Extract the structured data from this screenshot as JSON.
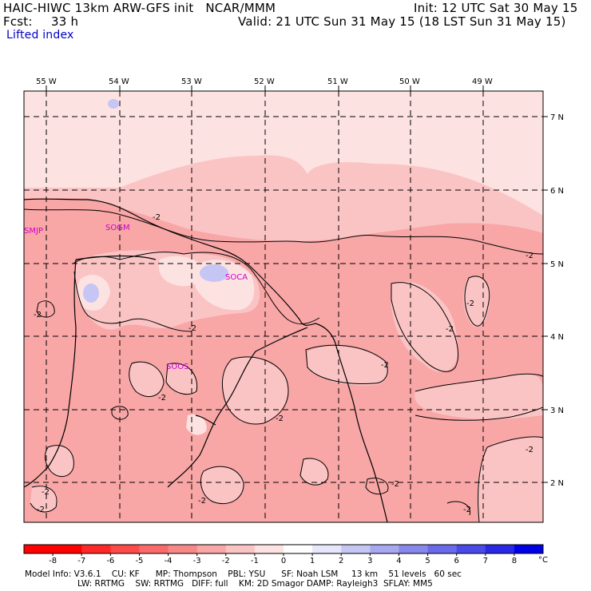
{
  "header": {
    "model_title": "HAIC-HIWC 13km ARW-GFS init   NCAR/MMM",
    "init": "Init: 12 UTC Sat 30 May 15",
    "fcst_label": "Fcst:",
    "fcst_value": "33 h",
    "valid": "Valid: 21 UTC Sun 31 May 15 (18 LST Sun 31 May 15)",
    "field_name": "Lifted index"
  },
  "map": {
    "lon_labels": [
      "55 W",
      "54 W",
      "53 W",
      "52 W",
      "51 W",
      "50 W",
      "49 W"
    ],
    "lat_labels": [
      "7 N",
      "6 N",
      "5 N",
      "4 N",
      "3 N",
      "2 N"
    ],
    "stations": [
      "SMJP",
      "SOGM",
      "SOCA",
      "SOOS"
    ],
    "contour_label": "-2",
    "colors": {
      "frame": "#000000",
      "station_text": "#cc00cc",
      "pale": "#fde2e2",
      "light": "#fbc4c4",
      "medium": "#f8a6a6",
      "blue_spot": "#c6c6f4"
    }
  },
  "colorbar": {
    "unit": "°C",
    "labels": [
      "-8",
      "-7",
      "-6",
      "-5",
      "-4",
      "-3",
      "-2",
      "-1",
      "0",
      "1",
      "2",
      "3",
      "4",
      "5",
      "6",
      "7",
      "8"
    ],
    "colors": [
      "#ff0000",
      "#ff2828",
      "#ff4a4a",
      "#fb6a6a",
      "#f88888",
      "#f8a6a6",
      "#fbc4c4",
      "#fde2e2",
      "#ffffff",
      "#e6e6fc",
      "#c6c6f4",
      "#a8a8f0",
      "#8888ec",
      "#6a6aea",
      "#4a4ae8",
      "#2828e6",
      "#0000e6"
    ]
  },
  "footer": {
    "line1": "Model Info: V3.6.1    CU: KF      MP: Thompson    PBL: YSU      SF: Noah LSM     13 km    51 levels   60 sec",
    "line2": "LW: RRTMG    SW: RRTMG   DIFF: full    KM: 2D Smagor DAMP: Rayleigh3  SFLAY: MM5"
  }
}
